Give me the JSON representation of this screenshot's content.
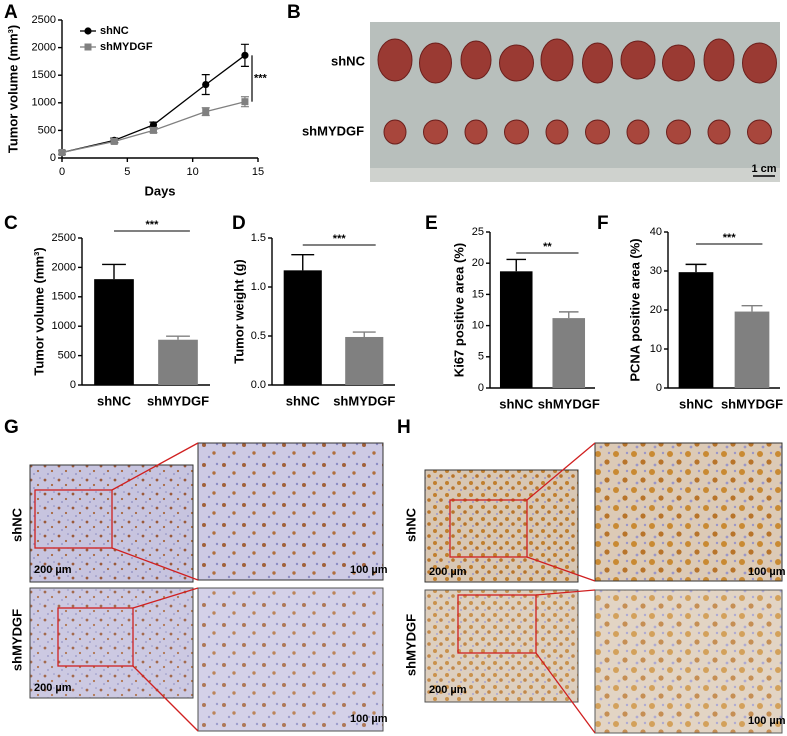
{
  "chart_data": [
    {
      "type": "line",
      "panel": "A",
      "ylabel": "Tumor volume (mm³)",
      "xlabel": "Days",
      "x": [
        0,
        4,
        7,
        11,
        14
      ],
      "xlim": [
        0,
        15
      ],
      "xticks": [
        0,
        5,
        10,
        15
      ],
      "ylim": [
        0,
        2500
      ],
      "yticks": [
        0,
        500,
        1000,
        1500,
        2000,
        2500
      ],
      "series": [
        {
          "name": "shNC",
          "color": "#000000",
          "marker": "circle",
          "values": [
            100,
            320,
            600,
            1330,
            1860
          ],
          "errors": [
            30,
            40,
            50,
            180,
            200
          ]
        },
        {
          "name": "shMYDGF",
          "color": "#808080",
          "marker": "square",
          "values": [
            100,
            300,
            500,
            840,
            1020
          ],
          "errors": [
            30,
            30,
            40,
            70,
            90
          ]
        }
      ],
      "annotation": "***"
    },
    {
      "type": "bar",
      "panel": "C",
      "ylabel": "Tumor volume (mm³)",
      "categories": [
        "shNC",
        "shMYDGF"
      ],
      "values": [
        1800,
        770
      ],
      "errors": [
        250,
        60
      ],
      "colors": [
        "#000000",
        "#808080"
      ],
      "ylim": [
        0,
        2500
      ],
      "yticks": [
        0,
        500,
        1000,
        1500,
        2000,
        2500
      ],
      "annotation": "***"
    },
    {
      "type": "bar",
      "panel": "D",
      "ylabel": "Tumor weight (g)",
      "categories": [
        "shNC",
        "shMYDGF"
      ],
      "values": [
        1.17,
        0.49
      ],
      "errors": [
        0.16,
        0.05
      ],
      "colors": [
        "#000000",
        "#808080"
      ],
      "ylim": [
        0,
        1.5
      ],
      "yticks": [
        {
          "value": 0,
          "label": "0.0"
        },
        0.5,
        {
          "value": 1,
          "label": "1.0"
        },
        1.5
      ],
      "annotation": "***"
    },
    {
      "type": "bar",
      "panel": "E",
      "ylabel": "Ki67 positive area (%)",
      "categories": [
        "shNC",
        "shMYDGF"
      ],
      "values": [
        18.7,
        11.2
      ],
      "errors": [
        1.9,
        1.0
      ],
      "colors": [
        "#000000",
        "#808080"
      ],
      "ylim": [
        0,
        25
      ],
      "yticks": [
        0,
        5,
        10,
        15,
        20,
        25
      ],
      "annotation": "**"
    },
    {
      "type": "bar",
      "panel": "F",
      "ylabel": "PCNA positive area (%)",
      "categories": [
        "shNC",
        "shMYDGF"
      ],
      "values": [
        29.7,
        19.6
      ],
      "errors": [
        2.0,
        1.5
      ],
      "colors": [
        "#000000",
        "#808080"
      ],
      "ylim": [
        0,
        40
      ],
      "yticks": [
        0,
        10,
        20,
        30,
        40
      ],
      "annotation": "***"
    }
  ],
  "photos": {
    "B": {
      "panel": "B",
      "rows": [
        "shNC",
        "shMYDGF"
      ],
      "scale": "1 cm"
    },
    "G": {
      "panel": "G",
      "rows": [
        "shNC",
        "shMYDGF"
      ],
      "scales": [
        "200 µm",
        "100 µm",
        "200 µm",
        "100 µm"
      ]
    },
    "H": {
      "panel": "H",
      "rows": [
        "shNC",
        "shMYDGF"
      ],
      "scales": [
        "200 µm",
        "100 µm",
        "200 µm",
        "100 µm"
      ]
    }
  }
}
